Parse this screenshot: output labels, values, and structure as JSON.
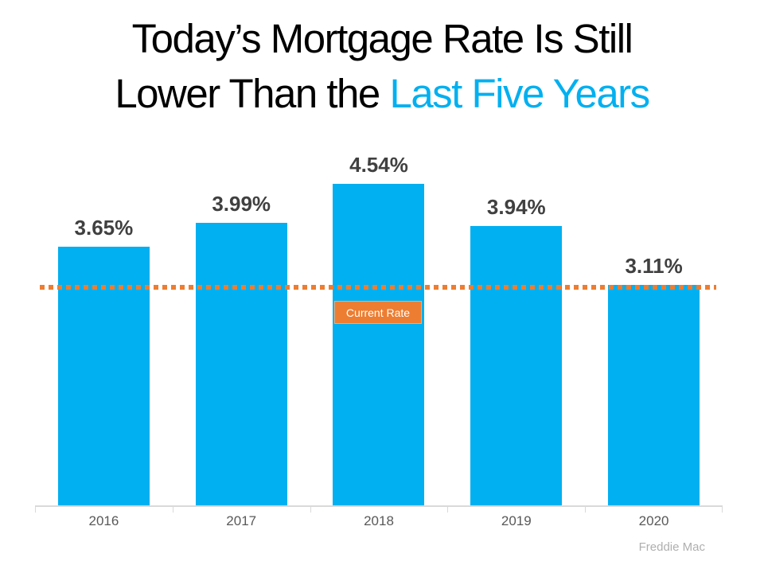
{
  "title": {
    "line1": "Today’s Mortgage Rate Is Still",
    "line2_prefix": "Lower Than the ",
    "line2_highlight": "Last Five Years",
    "highlight_color": "#00B0F0"
  },
  "chart_data": {
    "type": "bar",
    "categories": [
      "2016",
      "2017",
      "2018",
      "2019",
      "2020"
    ],
    "values": [
      3.65,
      3.99,
      4.54,
      3.94,
      3.11
    ],
    "labels": [
      "3.65%",
      "3.99%",
      "4.54%",
      "3.94%",
      "3.11%"
    ],
    "bar_color": "#00B0F0",
    "value_label_color": "#404040",
    "ylim": [
      0,
      4.54
    ],
    "grid": false,
    "legend": false,
    "reference_line": {
      "value": 3.11,
      "color": "#ED7D31",
      "style": "dotted"
    },
    "annotation": {
      "label": "Current Rate",
      "bg_color": "#ED7D31",
      "text_color": "#FFFFFF"
    },
    "source": "Freddie Mac"
  }
}
